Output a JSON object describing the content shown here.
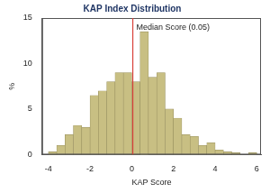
{
  "chart_data": {
    "type": "histogram",
    "title": "KAP Index Distribution",
    "x_label": "KAP Score",
    "y_label": "%",
    "bins": [
      -4,
      -3.6,
      -3.2,
      -2.8,
      -2.4,
      -2,
      -1.6,
      -1.2,
      -0.8,
      -0.4,
      0,
      0.4,
      0.8,
      1.2,
      1.6,
      2,
      2.4,
      2.8,
      3.2,
      3.6,
      4,
      4.4,
      4.8,
      5.2,
      5.6,
      6
    ],
    "values": [
      0.3,
      1,
      2.2,
      3.2,
      3,
      6.5,
      7,
      8,
      9,
      9,
      8,
      13.5,
      8.5,
      9,
      5,
      4,
      2.2,
      2,
      1,
      1.3,
      0.5,
      0.3,
      0.2,
      0,
      0.2
    ],
    "color": "#c8bf83",
    "median": 0.05,
    "median_color": "#d9413a",
    "annotation": "Median Score (0.05)",
    "xlim": [
      -4.3,
      6.2
    ],
    "xticks": [
      -4,
      -2,
      0,
      2,
      4,
      6
    ],
    "ylim": [
      0,
      15
    ],
    "yticks": [
      0,
      5,
      10,
      15
    ],
    "grid": false
  }
}
